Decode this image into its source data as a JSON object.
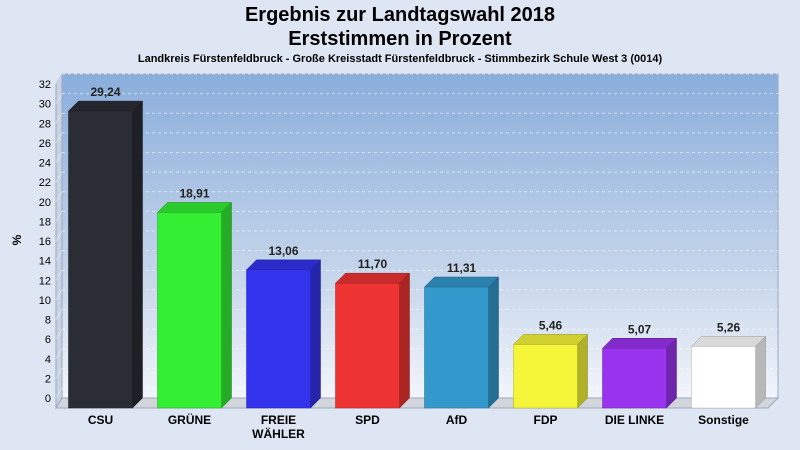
{
  "chart_data": {
    "type": "bar",
    "title": "Ergebnis zur Landtagswahl 2018",
    "subtitle": "Erststimmen in Prozent",
    "caption": "Landkreis Fürstenfeldbruck - Große Kreisstadt Fürstenfeldbruck - Stimmbezirk Schule West 3 (0014)",
    "ylabel": "%",
    "ylim": [
      0,
      32
    ],
    "yticks": [
      0,
      2,
      4,
      6,
      8,
      10,
      12,
      14,
      16,
      18,
      20,
      22,
      24,
      26,
      28,
      30,
      32
    ],
    "grid": true,
    "legend": "none",
    "categories": [
      "CSU",
      "GRÜNE",
      "FREIE WÄHLER",
      "SPD",
      "AfD",
      "FDP",
      "DIE LINKE",
      "Sonstige"
    ],
    "category_lines": [
      [
        "CSU"
      ],
      [
        "GRÜNE"
      ],
      [
        "FREIE",
        "WÄHLER"
      ],
      [
        "SPD"
      ],
      [
        "AfD"
      ],
      [
        "FDP"
      ],
      [
        "DIE LINKE"
      ],
      [
        "Sonstige"
      ]
    ],
    "values": [
      29.24,
      18.91,
      13.06,
      11.7,
      11.31,
      5.46,
      5.07,
      5.26
    ],
    "value_labels": [
      "29,24",
      "18,91",
      "13,06",
      "11,70",
      "11,31",
      "5,46",
      "5,07",
      "5,26"
    ],
    "colors": [
      "#2b2d35",
      "#33ee33",
      "#3333ee",
      "#ee3333",
      "#3399cc",
      "#f5f53a",
      "#9933ee",
      "#ffffff"
    ]
  }
}
